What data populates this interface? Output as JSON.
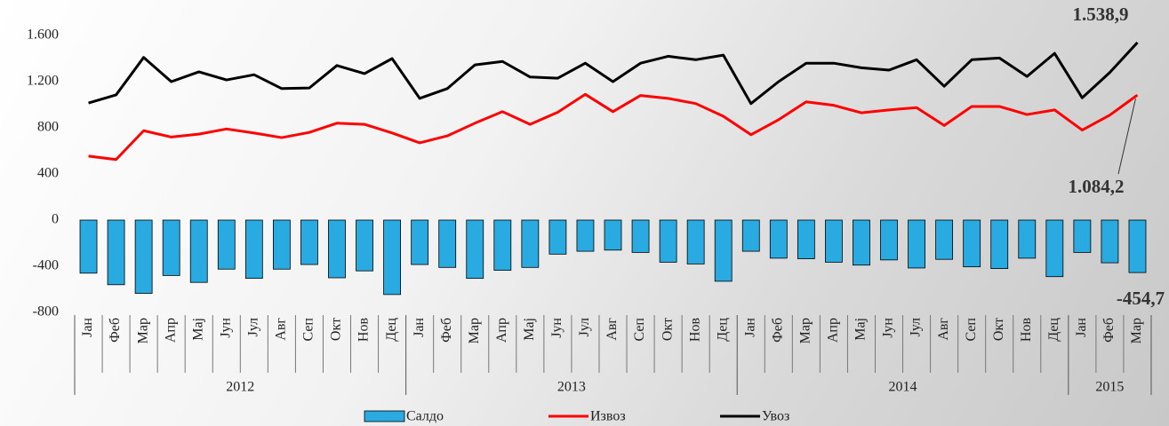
{
  "chart_data": {
    "type": "bar-line",
    "categories": [
      "Јан",
      "Феб",
      "Мар",
      "Апр",
      "Мај",
      "Јун",
      "Јул",
      "Авг",
      "Сеп",
      "Окт",
      "Нов",
      "Дец",
      "Јан",
      "Феб",
      "Мар",
      "Апр",
      "Мај",
      "Јун",
      "Јул",
      "Авг",
      "Сеп",
      "Окт",
      "Нов",
      "Дец",
      "Јан",
      "Феб",
      "Мар",
      "Апр",
      "Мај",
      "Јун",
      "Јул",
      "Авг",
      "Сеп",
      "Окт",
      "Нов",
      "Дец",
      "Јан",
      "Феб",
      "Мар"
    ],
    "groups": [
      "2012",
      "2013",
      "2014",
      "2015"
    ],
    "series": [
      {
        "name": "Салдо",
        "type": "bar",
        "color": "#29abe2",
        "values": [
          -460,
          -560,
          -635,
          -480,
          -540,
          -425,
          -505,
          -425,
          -385,
          -500,
          -440,
          -645,
          -385,
          -410,
          -505,
          -435,
          -410,
          -295,
          -270,
          -260,
          -280,
          -365,
          -380,
          -530,
          -270,
          -330,
          -335,
          -365,
          -390,
          -345,
          -415,
          -340,
          -405,
          -420,
          -330,
          -490,
          -280,
          -370,
          -454.7
        ],
        "value_labels": [
          null,
          null,
          null,
          null,
          null,
          null,
          null,
          null,
          null,
          null,
          null,
          null,
          null,
          null,
          null,
          null,
          null,
          null,
          null,
          null,
          null,
          null,
          null,
          null,
          null,
          null,
          null,
          null,
          null,
          null,
          null,
          null,
          null,
          null,
          null,
          null,
          null,
          null,
          "-454,7"
        ]
      },
      {
        "name": "Извоз",
        "type": "line",
        "color": "#ff0000",
        "values": [
          555,
          525,
          775,
          720,
          745,
          790,
          755,
          715,
          760,
          840,
          830,
          755,
          670,
          730,
          840,
          940,
          830,
          935,
          1090,
          940,
          1080,
          1055,
          1010,
          900,
          740,
          870,
          1025,
          995,
          930,
          955,
          975,
          820,
          985,
          985,
          915,
          955,
          780,
          910,
          1084.2
        ],
        "value_labels": [
          null,
          null,
          null,
          null,
          null,
          null,
          null,
          null,
          null,
          null,
          null,
          null,
          null,
          null,
          null,
          null,
          null,
          null,
          null,
          null,
          null,
          null,
          null,
          null,
          null,
          null,
          null,
          null,
          null,
          null,
          null,
          null,
          null,
          null,
          null,
          null,
          null,
          null,
          "1.084,2"
        ]
      },
      {
        "name": "Увоз",
        "type": "line",
        "color": "#000000",
        "values": [
          1015,
          1085,
          1410,
          1200,
          1285,
          1215,
          1260,
          1140,
          1145,
          1340,
          1270,
          1400,
          1055,
          1140,
          1345,
          1375,
          1240,
          1230,
          1360,
          1200,
          1360,
          1420,
          1390,
          1430,
          1010,
          1200,
          1360,
          1360,
          1320,
          1300,
          1390,
          1160,
          1390,
          1405,
          1245,
          1445,
          1060,
          1280,
          1538.9
        ],
        "value_labels": [
          null,
          null,
          null,
          null,
          null,
          null,
          null,
          null,
          null,
          null,
          null,
          null,
          null,
          null,
          null,
          null,
          null,
          null,
          null,
          null,
          null,
          null,
          null,
          null,
          null,
          null,
          null,
          null,
          null,
          null,
          null,
          null,
          null,
          null,
          null,
          null,
          null,
          null,
          "1.538,9"
        ]
      }
    ],
    "ylim": [
      -800,
      1600
    ],
    "yticks": [
      {
        "value": 1600,
        "label": "1.600"
      },
      {
        "value": 1200,
        "label": "1.200"
      },
      800,
      400,
      0,
      -400,
      -800
    ],
    "grid": false,
    "legend": "bottom"
  }
}
